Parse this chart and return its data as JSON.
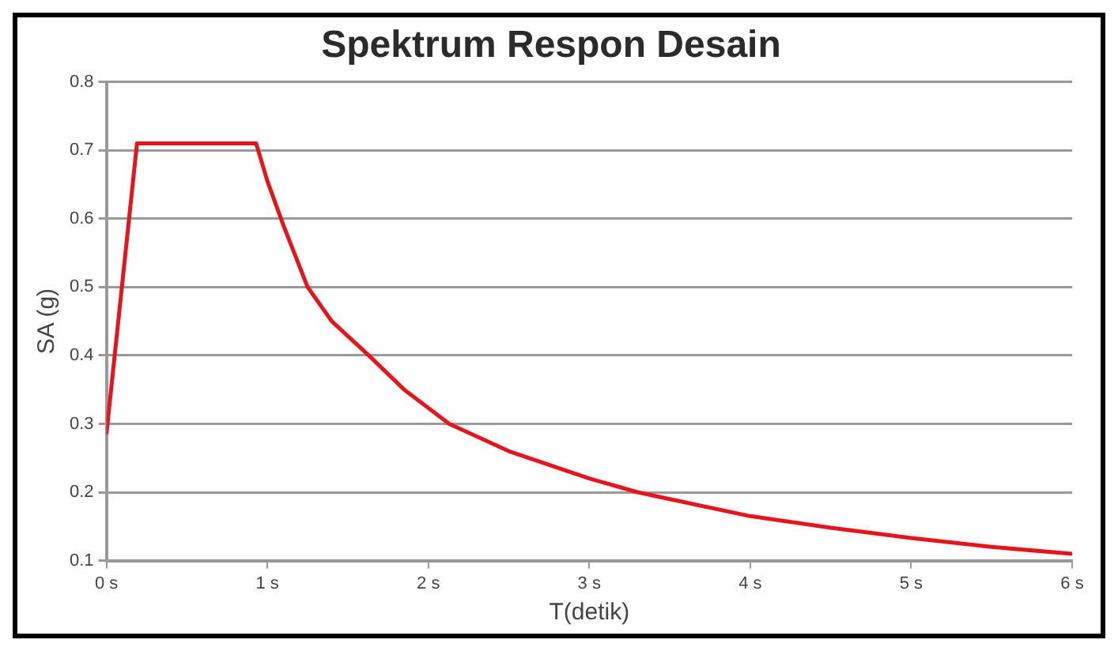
{
  "chart_data": {
    "type": "line",
    "title": "Spektrum Respon Desain",
    "xlabel": "T(detik)",
    "ylabel": "SA (g)",
    "x": [
      0,
      0.19,
      0.93,
      1.0,
      1.1,
      1.25,
      1.4,
      1.63,
      1.85,
      2.13,
      2.5,
      3.0,
      3.3,
      3.5,
      4.0,
      4.5,
      5.0,
      5.5,
      6.0
    ],
    "series": [
      {
        "color": "#e8141c",
        "values": [
          0.285,
          0.71,
          0.71,
          0.655,
          0.59,
          0.5,
          0.45,
          0.4,
          0.35,
          0.3,
          0.26,
          0.22,
          0.2,
          0.19,
          0.165,
          0.148,
          0.133,
          0.12,
          0.11
        ]
      }
    ],
    "xlim": [
      0,
      6
    ],
    "xticks": [
      {
        "value": 0,
        "label": "0 s"
      },
      {
        "value": 1,
        "label": "1 s"
      },
      {
        "value": 2,
        "label": "2 s"
      },
      {
        "value": 3,
        "label": "3 s"
      },
      {
        "value": 4,
        "label": "4 s"
      },
      {
        "value": 5,
        "label": "5 s"
      },
      {
        "value": 6,
        "label": "6 s"
      }
    ],
    "ylim": [
      0.1,
      0.8
    ],
    "yticks": [
      0.1,
      0.2,
      0.3,
      0.4,
      0.5,
      0.6,
      0.7,
      0.8
    ],
    "grid": "y",
    "legend": false,
    "marker": "none",
    "line_style": "solid"
  }
}
